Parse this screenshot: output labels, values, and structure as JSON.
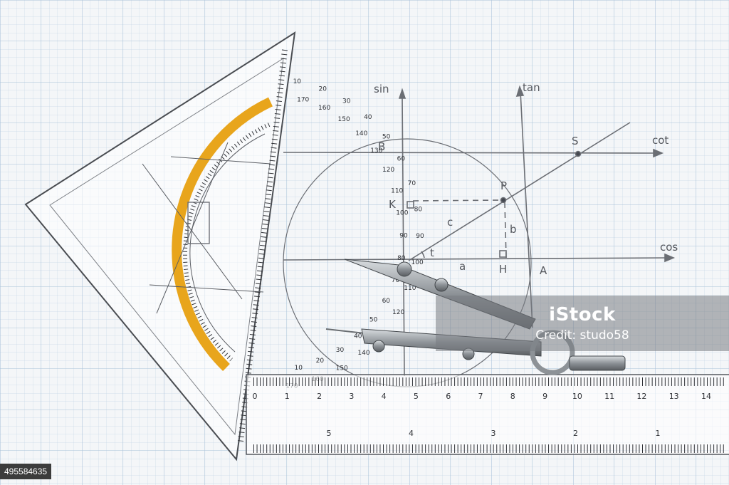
{
  "diagram": {
    "axis_labels": {
      "sin": "sin",
      "tan": "tan",
      "cot": "cot",
      "cos": "cos"
    },
    "points": {
      "B": "B",
      "S": "S",
      "P": "P",
      "K": "K",
      "c": "c",
      "b": "b",
      "a": "a",
      "H": "H",
      "A": "A",
      "t": "t"
    }
  },
  "protractor": {
    "outer_scale": [
      "10",
      "20",
      "30",
      "40",
      "50",
      "60",
      "70",
      "80",
      "90",
      "100",
      "110",
      "120",
      "130",
      "140",
      "150",
      "160",
      "170"
    ],
    "inner_scale": [
      "170",
      "160",
      "150",
      "140",
      "130",
      "120",
      "110",
      "100",
      "90",
      "80",
      "70",
      "60",
      "50",
      "40",
      "30",
      "20",
      "10"
    ]
  },
  "ruler": {
    "top_scale": [
      "0",
      "1",
      "2",
      "3",
      "4",
      "5",
      "6",
      "7",
      "8",
      "9",
      "10",
      "11",
      "12",
      "13",
      "14"
    ],
    "bottom_scale": [
      "5",
      "4",
      "3",
      "2",
      "1"
    ]
  },
  "watermark": {
    "brand": "iStock",
    "credit": "Credit: studo58"
  },
  "stock_id": "495584635",
  "colors": {
    "paper": "#f4f6f8",
    "grid": "#b9cde0",
    "protractor_band": "#e8a51c",
    "pencil": "#6b6e74",
    "metal": "#9ea3a8"
  }
}
